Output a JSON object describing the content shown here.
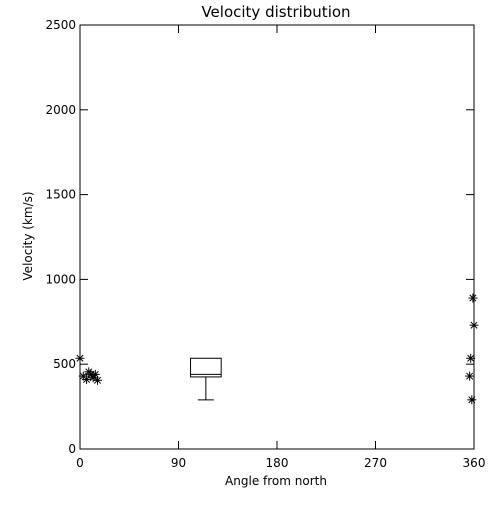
{
  "chart_data": {
    "type": "scatter",
    "title": "Velocity distribution",
    "xlabel": "Angle from north",
    "ylabel": "Velocity (km/s)",
    "xlim": [
      0,
      360
    ],
    "ylim": [
      0,
      2500
    ],
    "xticks": [
      0,
      90,
      180,
      270,
      360
    ],
    "yticks": [
      0,
      500,
      1000,
      1500,
      2000,
      2500
    ],
    "grid": false,
    "legend": "none",
    "marker": "asterisk",
    "points": [
      {
        "x": 0,
        "y": 535
      },
      {
        "x": 3,
        "y": 430
      },
      {
        "x": 6,
        "y": 410
      },
      {
        "x": 8,
        "y": 455
      },
      {
        "x": 10,
        "y": 440
      },
      {
        "x": 12,
        "y": 420
      },
      {
        "x": 14,
        "y": 440
      },
      {
        "x": 16,
        "y": 405
      },
      {
        "x": 356,
        "y": 430
      },
      {
        "x": 357,
        "y": 535
      },
      {
        "x": 358,
        "y": 290
      },
      {
        "x": 359,
        "y": 890
      },
      {
        "x": 360,
        "y": 730
      }
    ],
    "box": {
      "x_left": 101,
      "x_right": 129,
      "median": 440,
      "q1": 425,
      "q3": 535,
      "whisker_low": 290,
      "whisker_x": 115
    },
    "colors": {
      "foreground": "#000000",
      "background": "#ffffff"
    }
  }
}
